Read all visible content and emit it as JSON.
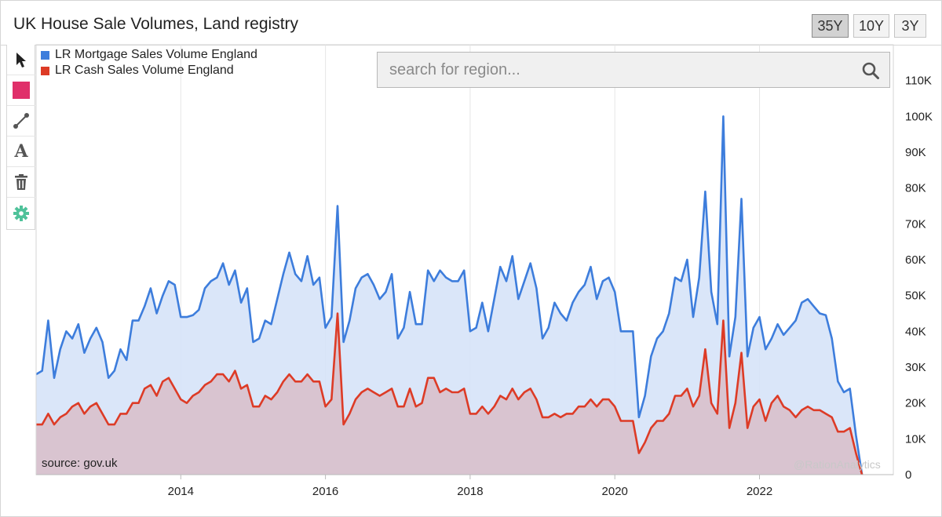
{
  "app": {
    "title": "UK House Sale Volumes, Land registry"
  },
  "range_buttons": [
    {
      "label": "35Y",
      "active": true
    },
    {
      "label": "10Y",
      "active": false
    },
    {
      "label": "3Y",
      "active": false
    }
  ],
  "toolbar": {
    "tools": [
      {
        "name": "pointer-icon"
      },
      {
        "name": "color-swatch-icon",
        "color": "#e0306a"
      },
      {
        "name": "line-tool-icon"
      },
      {
        "name": "text-tool-icon",
        "glyph": "A"
      },
      {
        "name": "trash-icon"
      },
      {
        "name": "settings-gear-icon",
        "color": "#4fc29a"
      }
    ]
  },
  "search": {
    "placeholder": "search for region...",
    "value": ""
  },
  "source_note": "source: gov.uk",
  "watermark": "@RationAnalytics",
  "chart_data": {
    "type": "area",
    "title": "UK House Sale Volumes, Land registry",
    "x_range": [
      2012.0,
      2023.85
    ],
    "x_ticks": [
      2014,
      2016,
      2018,
      2020,
      2022
    ],
    "x_tick_labels": [
      "2014",
      "2016",
      "2018",
      "2020",
      "2022"
    ],
    "y_range": [
      0,
      120000
    ],
    "y_ticks": [
      0,
      10000,
      20000,
      30000,
      40000,
      50000,
      60000,
      70000,
      80000,
      90000,
      100000,
      110000
    ],
    "y_tick_labels": [
      "0",
      "10K",
      "20K",
      "30K",
      "40K",
      "50K",
      "60K",
      "70K",
      "80K",
      "90K",
      "100K",
      "110K"
    ],
    "grid": true,
    "legend": "top-left",
    "x_start": 2012.0,
    "x_step_months": 1,
    "series": [
      {
        "name": "LR Mortgage Sales Volume England",
        "color": "#3d7ddc",
        "fill": "#d6e3f8",
        "values": [
          28000,
          29000,
          43000,
          27000,
          35000,
          40000,
          38000,
          42000,
          34000,
          38000,
          41000,
          37000,
          27000,
          29000,
          35000,
          32000,
          43000,
          43000,
          47000,
          52000,
          45000,
          50000,
          54000,
          53000,
          44000,
          44000,
          44500,
          46000,
          52000,
          54000,
          55000,
          59000,
          53000,
          57000,
          48000,
          52000,
          37000,
          38000,
          43000,
          42000,
          49000,
          56000,
          62000,
          56000,
          54000,
          61000,
          53000,
          55000,
          41000,
          44000,
          75000,
          37000,
          43000,
          52000,
          55000,
          56000,
          53000,
          49000,
          51000,
          56000,
          38000,
          41000,
          51000,
          42000,
          42000,
          57000,
          54000,
          57000,
          55000,
          54000,
          54000,
          57000,
          40000,
          41000,
          48000,
          40000,
          49000,
          58000,
          54000,
          61000,
          49000,
          54000,
          59000,
          52000,
          38000,
          41000,
          48000,
          45000,
          43000,
          48000,
          51000,
          53000,
          58000,
          49000,
          54000,
          55000,
          51000,
          40000,
          40000,
          40000,
          16000,
          22000,
          33000,
          38000,
          40000,
          45000,
          55000,
          54000,
          60000,
          44000,
          55000,
          79000,
          51000,
          42000,
          100000,
          33000,
          44000,
          77000,
          33000,
          41000,
          44000,
          35000,
          38000,
          42000,
          39000,
          41000,
          43000,
          48000,
          49000,
          47000,
          45000,
          44500,
          38000,
          26000,
          23000,
          24000,
          11000,
          0
        ]
      },
      {
        "name": "LR Cash Sales Volume England",
        "color": "#dd3b26",
        "fill": "#d9c2cd",
        "values": [
          14000,
          14000,
          17000,
          14000,
          16000,
          17000,
          19000,
          20000,
          17000,
          19000,
          20000,
          17000,
          14000,
          14000,
          17000,
          17000,
          20000,
          20000,
          24000,
          25000,
          22000,
          26000,
          27000,
          24000,
          21000,
          20000,
          22000,
          23000,
          25000,
          26000,
          28000,
          28000,
          26000,
          29000,
          24000,
          25000,
          19000,
          19000,
          22000,
          21000,
          23000,
          26000,
          28000,
          26000,
          26000,
          28000,
          26000,
          26000,
          19000,
          21000,
          45000,
          14000,
          17000,
          21000,
          23000,
          24000,
          23000,
          22000,
          23000,
          24000,
          19000,
          19000,
          24000,
          19000,
          20000,
          27000,
          27000,
          23000,
          24000,
          23000,
          23000,
          24000,
          17000,
          17000,
          19000,
          17000,
          19000,
          22000,
          21000,
          24000,
          21000,
          23000,
          24000,
          21000,
          16000,
          16000,
          17000,
          16000,
          17000,
          17000,
          19000,
          19000,
          21000,
          19000,
          21000,
          21000,
          19000,
          15000,
          15000,
          15000,
          6000,
          9000,
          13000,
          15000,
          15000,
          17000,
          22000,
          22000,
          24000,
          19000,
          22000,
          35000,
          20000,
          17000,
          43000,
          13000,
          20000,
          34000,
          13000,
          19000,
          21000,
          15000,
          20000,
          22000,
          19000,
          18000,
          16000,
          18000,
          19000,
          18000,
          18000,
          17000,
          16000,
          12000,
          12000,
          13000,
          6000,
          0
        ]
      }
    ]
  }
}
